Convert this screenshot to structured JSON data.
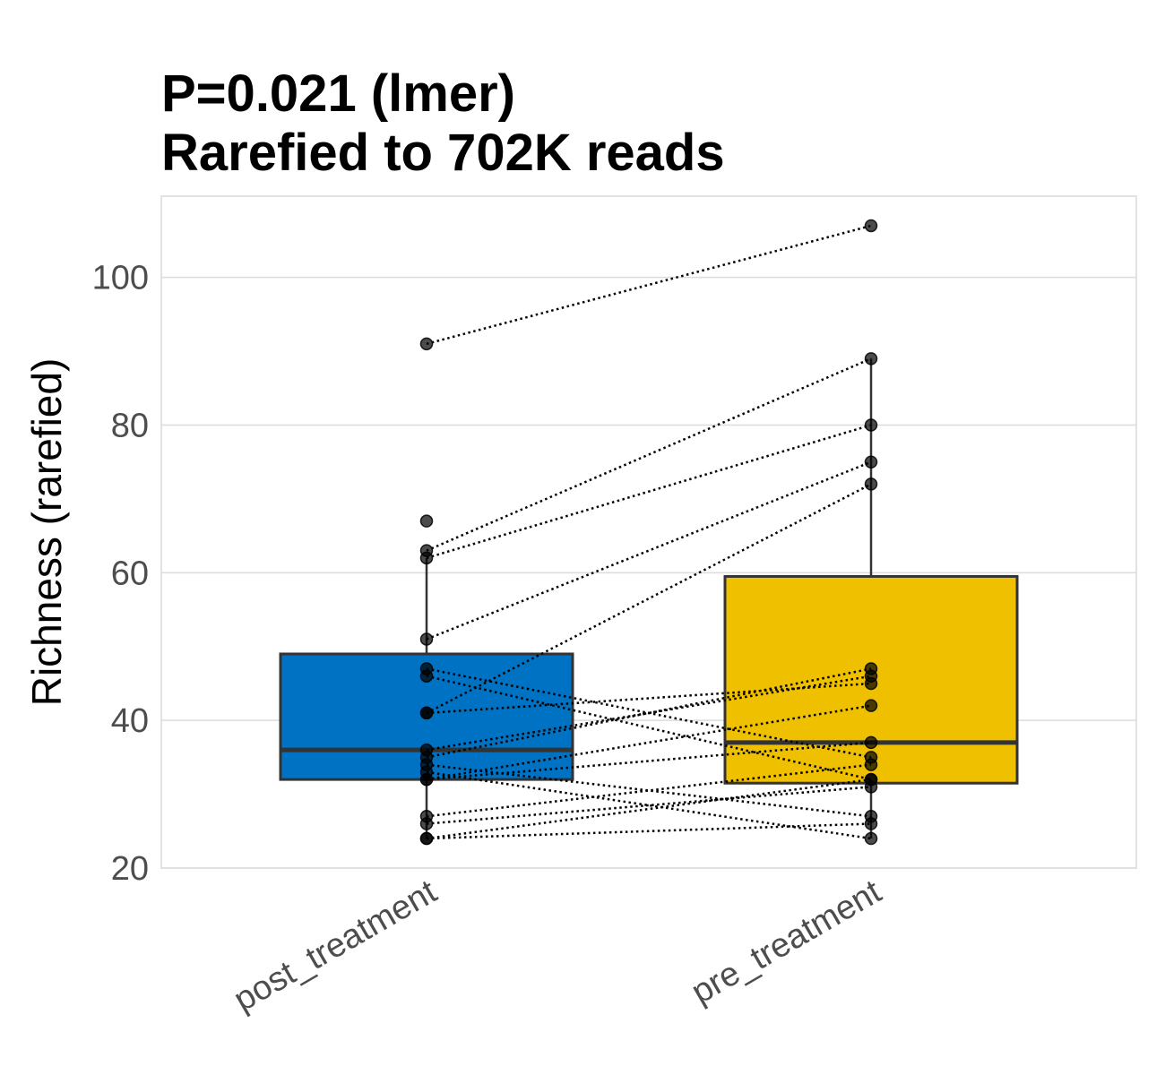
{
  "chart_data": {
    "type": "box",
    "title": [
      "P=0.021 (lmer)",
      "Rarefied to 702K reads"
    ],
    "xlabel": "",
    "ylabel": "Richness (rarefied)",
    "ylim": [
      20,
      111
    ],
    "yticks": [
      20,
      40,
      60,
      80,
      100
    ],
    "grid": true,
    "categories": [
      "post_treatment",
      "pre_treatment"
    ],
    "boxes": [
      {
        "category": "post_treatment",
        "color": "#0072C3",
        "whisker_low": 24,
        "q1": 32,
        "median": 36,
        "q3": 49,
        "whisker_high": 62,
        "outliers": [
          63,
          67,
          91
        ]
      },
      {
        "category": "pre_treatment",
        "color": "#EFC000",
        "whisker_low": 24,
        "q1": 31.5,
        "median": 37,
        "q3": 59.5,
        "whisker_high": 89,
        "outliers": [
          107
        ]
      }
    ],
    "paired_points": [
      {
        "post": 91,
        "pre": 107
      },
      {
        "post": 63,
        "pre": 89
      },
      {
        "post": 62,
        "pre": 80
      },
      {
        "post": 51,
        "pre": 75
      },
      {
        "post": 41,
        "pre": 72
      },
      {
        "post": 47,
        "pre": 35
      },
      {
        "post": 46,
        "pre": 32
      },
      {
        "post": 41,
        "pre": 45
      },
      {
        "post": 36,
        "pre": 46
      },
      {
        "post": 35,
        "pre": 47
      },
      {
        "post": 34,
        "pre": 27
      },
      {
        "post": 33,
        "pre": 24
      },
      {
        "post": 32,
        "pre": 37
      },
      {
        "post": 32,
        "pre": 42
      },
      {
        "post": 27,
        "pre": 34
      },
      {
        "post": 26,
        "pre": 31
      },
      {
        "post": 24,
        "pre": 32
      },
      {
        "post": 24,
        "pre": 26
      }
    ],
    "unpaired_points": [
      {
        "category": "post_treatment",
        "value": 67
      }
    ]
  }
}
